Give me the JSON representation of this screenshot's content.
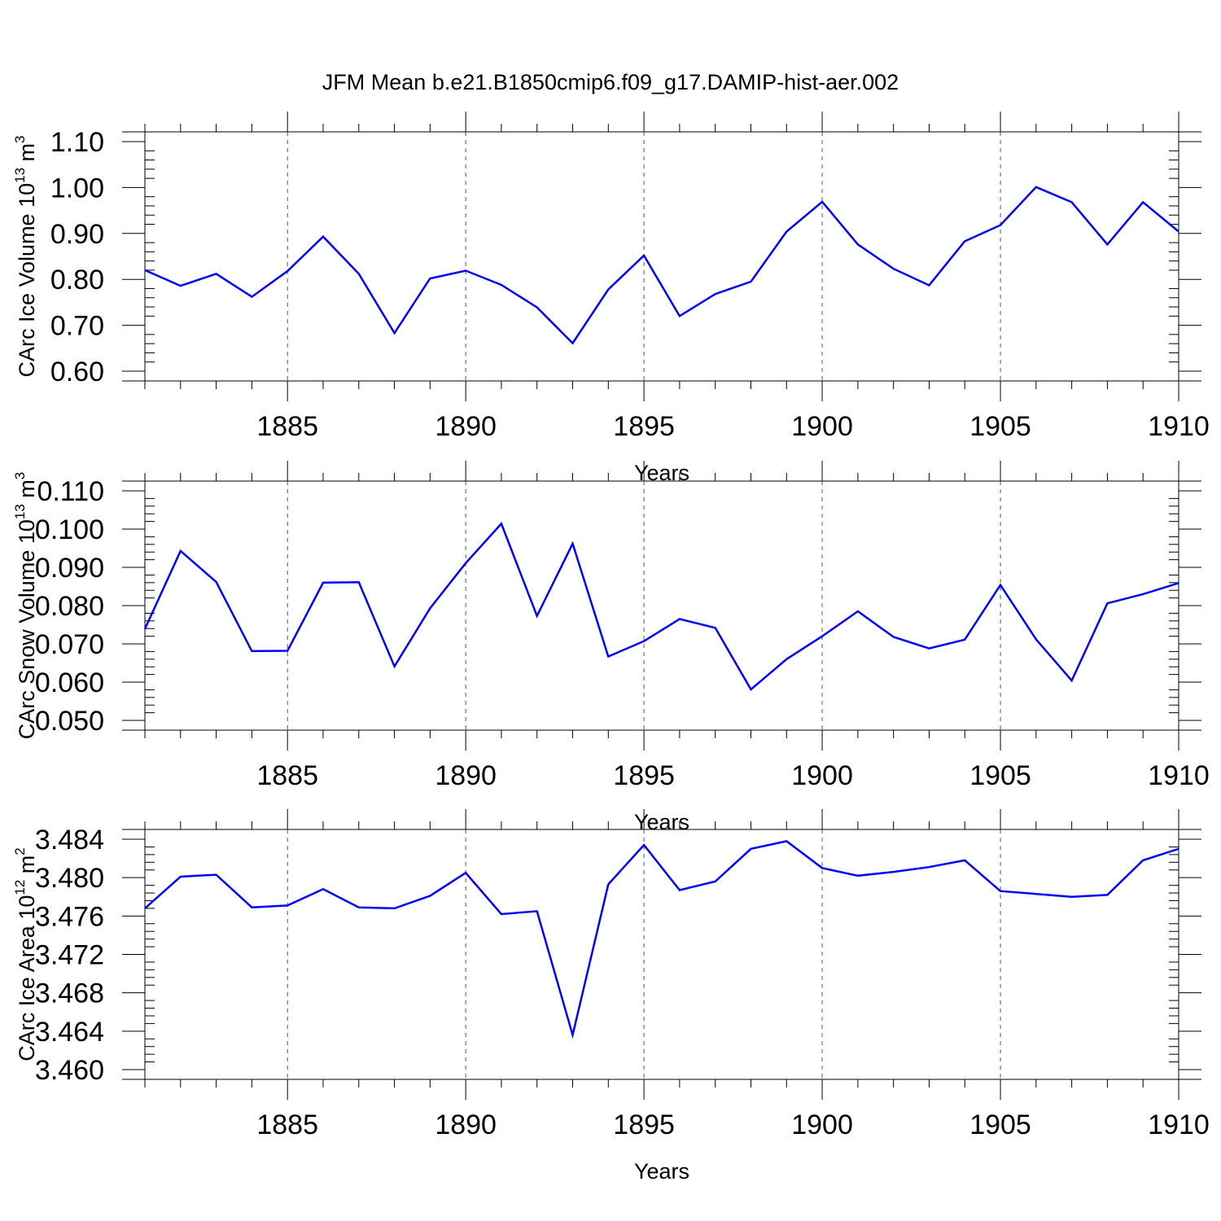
{
  "title": "JFM Mean b.e21.B1850cmip6.f09_g17.DAMIP-hist-aer.002",
  "colors": {
    "line": "#0000ff",
    "axes": "#000000",
    "grid": "#555555"
  },
  "chart_data": [
    {
      "type": "line",
      "xlabel": "Years",
      "ylabel_main": "CArc Ice Volume 10",
      "ylabel_exp": "13",
      "ylabel_unit": " m",
      "ylabel_unit_exp": "3",
      "xlim": [
        1881,
        1910
      ],
      "ylim": [
        0.6,
        1.1
      ],
      "xticks": [
        1885,
        1890,
        1895,
        1900,
        1905,
        1910
      ],
      "yticks": [
        "0.60",
        "0.70",
        "0.80",
        "0.90",
        "1.00",
        "1.10"
      ],
      "grid": "vertical-dashed",
      "series": [
        {
          "name": "CArc Ice Volume",
          "x": [
            1881,
            1882,
            1883,
            1884,
            1885,
            1886,
            1887,
            1888,
            1889,
            1890,
            1891,
            1892,
            1893,
            1894,
            1895,
            1896,
            1897,
            1898,
            1899,
            1900,
            1901,
            1902,
            1903,
            1904,
            1905,
            1906,
            1907,
            1908,
            1909,
            1910
          ],
          "values": [
            0.82,
            0.786,
            0.812,
            0.762,
            0.818,
            0.893,
            0.812,
            0.683,
            0.802,
            0.819,
            0.788,
            0.739,
            0.661,
            0.778,
            0.852,
            0.72,
            0.768,
            0.795,
            0.904,
            0.969,
            0.876,
            0.823,
            0.787,
            0.883,
            0.918,
            1.001,
            0.968,
            0.876,
            0.968,
            0.904
          ]
        }
      ]
    },
    {
      "type": "line",
      "xlabel": "Years",
      "ylabel_main": "CArc Snow Volume 10",
      "ylabel_exp": "13",
      "ylabel_unit": " m",
      "ylabel_unit_exp": "3",
      "xlim": [
        1881,
        1910
      ],
      "ylim": [
        0.05,
        0.11
      ],
      "xticks": [
        1885,
        1890,
        1895,
        1900,
        1905,
        1910
      ],
      "yticks": [
        "0.050",
        "0.060",
        "0.070",
        "0.080",
        "0.090",
        "0.100",
        "0.110"
      ],
      "grid": "vertical-dashed",
      "series": [
        {
          "name": "CArc Snow Volume",
          "x": [
            1881,
            1882,
            1883,
            1884,
            1885,
            1886,
            1887,
            1888,
            1889,
            1890,
            1891,
            1892,
            1893,
            1894,
            1895,
            1896,
            1897,
            1898,
            1899,
            1900,
            1901,
            1902,
            1903,
            1904,
            1905,
            1906,
            1907,
            1908,
            1909,
            1910
          ],
          "values": [
            0.0739,
            0.0943,
            0.0862,
            0.0681,
            0.0682,
            0.086,
            0.0861,
            0.0641,
            0.0793,
            0.0911,
            0.1014,
            0.0773,
            0.0962,
            0.0667,
            0.0707,
            0.0765,
            0.0742,
            0.0581,
            0.066,
            0.072,
            0.0785,
            0.0718,
            0.0688,
            0.0711,
            0.0854,
            0.0712,
            0.0604,
            0.0806,
            0.083,
            0.0859
          ]
        }
      ]
    },
    {
      "type": "line",
      "xlabel": "Years",
      "ylabel_main": "CArc Ice Area 10",
      "ylabel_exp": "12",
      "ylabel_unit": " m",
      "ylabel_unit_exp": "2",
      "xlim": [
        1881,
        1910
      ],
      "ylim": [
        3.46,
        3.484
      ],
      "xticks": [
        1885,
        1890,
        1895,
        1900,
        1905,
        1910
      ],
      "yticks": [
        "3.460",
        "3.464",
        "3.468",
        "3.472",
        "3.476",
        "3.480",
        "3.484"
      ],
      "grid": "vertical-dashed",
      "series": [
        {
          "name": "CArc Ice Area",
          "x": [
            1881,
            1882,
            1883,
            1884,
            1885,
            1886,
            1887,
            1888,
            1889,
            1890,
            1891,
            1892,
            1893,
            1894,
            1895,
            1896,
            1897,
            1898,
            1899,
            1900,
            1901,
            1902,
            1903,
            1904,
            1905,
            1906,
            1907,
            1908,
            1909,
            1910
          ],
          "values": [
            3.4768,
            3.4801,
            3.4803,
            3.4769,
            3.4771,
            3.4788,
            3.4769,
            3.4768,
            3.4781,
            3.4805,
            3.4762,
            3.4765,
            3.4636,
            3.4793,
            3.4834,
            3.4787,
            3.4796,
            3.483,
            3.4838,
            3.481,
            3.4802,
            3.4806,
            3.4811,
            3.4818,
            3.4786,
            3.4783,
            3.478,
            3.4782,
            3.4818,
            3.483
          ]
        }
      ]
    }
  ]
}
